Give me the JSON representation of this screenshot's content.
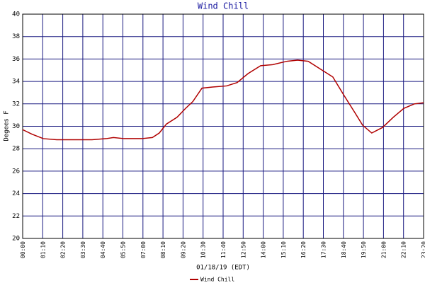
{
  "chart_data": {
    "type": "line",
    "title": "Wind Chill",
    "y_label": "Degees F",
    "x_label": "01/18/19 (EDT)",
    "x": [
      0,
      32,
      72,
      119,
      168,
      242,
      292,
      317,
      354,
      416,
      453,
      477,
      502,
      539,
      569,
      594,
      626,
      663,
      712,
      749,
      787,
      831,
      873,
      923,
      960,
      997,
      1046,
      1083,
      1121,
      1158,
      1187,
      1219,
      1257,
      1294,
      1331,
      1368,
      1400
    ],
    "series": [
      {
        "name": "Wind Chill",
        "color": "#b00000",
        "values": [
          29.7,
          29.3,
          28.9,
          28.8,
          28.8,
          28.8,
          28.9,
          29.0,
          28.9,
          28.9,
          29.0,
          29.4,
          30.2,
          30.8,
          31.6,
          32.2,
          33.4,
          33.5,
          33.6,
          33.9,
          34.7,
          35.4,
          35.5,
          35.8,
          35.9,
          35.8,
          35.0,
          34.4,
          32.8,
          31.3,
          30.1,
          29.4,
          29.9,
          30.8,
          31.6,
          32.0,
          32.1
        ]
      }
    ],
    "xlim": [
      0,
      1400
    ],
    "xticks": [
      {
        "value": 0,
        "label": "00:00"
      },
      {
        "value": 70,
        "label": "01:10"
      },
      {
        "value": 140,
        "label": "02:20"
      },
      {
        "value": 210,
        "label": "03:30"
      },
      {
        "value": 280,
        "label": "04:40"
      },
      {
        "value": 350,
        "label": "05:50"
      },
      {
        "value": 420,
        "label": "07:00"
      },
      {
        "value": 490,
        "label": "08:10"
      },
      {
        "value": 560,
        "label": "09:20"
      },
      {
        "value": 630,
        "label": "10:30"
      },
      {
        "value": 700,
        "label": "11:40"
      },
      {
        "value": 770,
        "label": "12:50"
      },
      {
        "value": 840,
        "label": "14:00"
      },
      {
        "value": 910,
        "label": "15:10"
      },
      {
        "value": 980,
        "label": "16:20"
      },
      {
        "value": 1050,
        "label": "17:30"
      },
      {
        "value": 1120,
        "label": "18:40"
      },
      {
        "value": 1190,
        "label": "19:50"
      },
      {
        "value": 1260,
        "label": "21:00"
      },
      {
        "value": 1330,
        "label": "22:10"
      },
      {
        "value": 1400,
        "label": "23:20"
      }
    ],
    "ylim": [
      20,
      40
    ],
    "yticks": [
      20,
      22,
      24,
      26,
      28,
      30,
      32,
      34,
      36,
      38,
      40
    ],
    "grid": true
  }
}
